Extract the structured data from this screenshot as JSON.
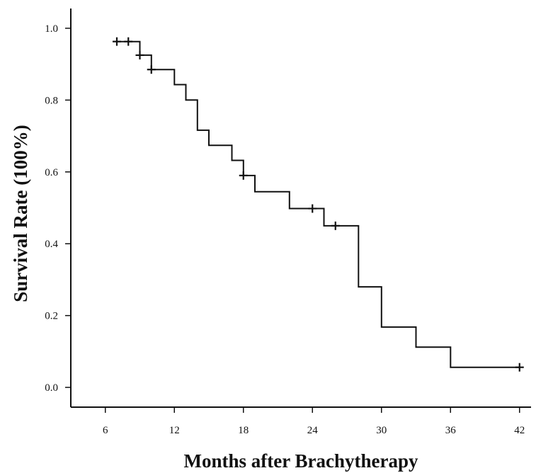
{
  "chart_data": {
    "type": "line",
    "title": "",
    "xlabel": "Months after Brachytherapy",
    "ylabel": "Survival Rate (100%)",
    "xlim": [
      3,
      43
    ],
    "ylim": [
      -0.055,
      1.055
    ],
    "xticks": [
      6,
      12,
      18,
      24,
      30,
      36,
      42
    ],
    "xtick_labels": [
      "6",
      "12",
      "18",
      "24",
      "30",
      "36",
      "42"
    ],
    "yticks": [
      0.0,
      0.2,
      0.4,
      0.6,
      0.8,
      1.0
    ],
    "ytick_labels": [
      "0.0",
      "0.2",
      "0.4",
      "0.6",
      "0.8",
      "1.0"
    ],
    "grid": false,
    "series": [
      {
        "step": [
          [
            7,
            0.963
          ],
          [
            9,
            0.963
          ],
          [
            9,
            0.925
          ],
          [
            10,
            0.925
          ],
          [
            10,
            0.885
          ],
          [
            12,
            0.885
          ],
          [
            12,
            0.843
          ],
          [
            13,
            0.843
          ],
          [
            13,
            0.8
          ],
          [
            14,
            0.8
          ],
          [
            14,
            0.716
          ],
          [
            15,
            0.716
          ],
          [
            15,
            0.674
          ],
          [
            17,
            0.674
          ],
          [
            17,
            0.632
          ],
          [
            18,
            0.632
          ],
          [
            18,
            0.59
          ],
          [
            19,
            0.59
          ],
          [
            19,
            0.545
          ],
          [
            22,
            0.545
          ],
          [
            22,
            0.498
          ],
          [
            25,
            0.498
          ],
          [
            25,
            0.45
          ],
          [
            28,
            0.45
          ],
          [
            28,
            0.28
          ],
          [
            30,
            0.28
          ],
          [
            30,
            0.168
          ],
          [
            33,
            0.168
          ],
          [
            33,
            0.112
          ],
          [
            36,
            0.112
          ],
          [
            36,
            0.056
          ],
          [
            42,
            0.056
          ]
        ],
        "censored": [
          [
            7,
            0.963
          ],
          [
            8,
            0.963
          ],
          [
            9,
            0.925
          ],
          [
            10,
            0.885
          ],
          [
            18,
            0.59
          ],
          [
            24,
            0.498
          ],
          [
            26,
            0.45
          ],
          [
            42,
            0.056
          ]
        ]
      }
    ]
  }
}
